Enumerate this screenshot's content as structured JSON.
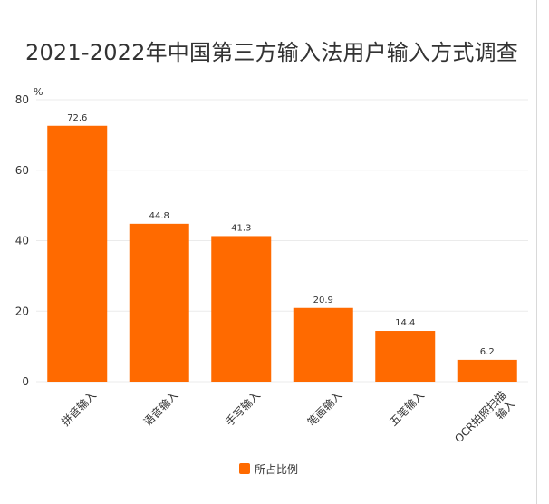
{
  "chart_data": {
    "type": "bar",
    "title": "2021-2022年中国第三方输入法用户输入方式调查",
    "ylabel": "%",
    "xlabel": "",
    "categories": [
      "拼音输入",
      "语音输入",
      "手写输入",
      "笔画输入",
      "五笔输入",
      "OCR拍照扫描输入"
    ],
    "series": [
      {
        "name": "所占比例",
        "values": [
          72.6,
          44.8,
          41.3,
          20.9,
          14.4,
          6.2
        ]
      }
    ],
    "yticks": [
      "0",
      "20",
      "40",
      "60",
      "80"
    ],
    "ylim": [
      0,
      80
    ],
    "grid": true,
    "legend": "bottom-center",
    "colors": {
      "bar": "#ff6a00",
      "grid": "#ebebeb",
      "text": "#333333"
    }
  }
}
